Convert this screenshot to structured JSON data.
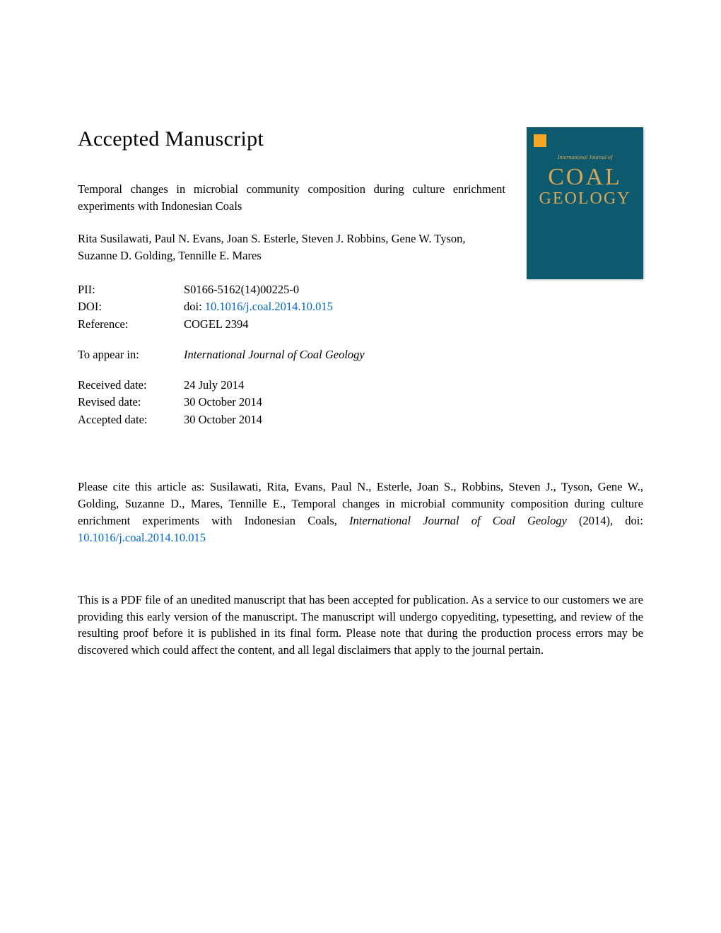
{
  "header": {
    "title": "Accepted Manuscript"
  },
  "article": {
    "title": "Temporal changes in microbial community composition during culture enrichment experiments with Indonesian Coals",
    "authors": "Rita Susilawati, Paul N. Evans, Joan S. Esterle, Steven J. Robbins, Gene W. Tyson, Suzanne D. Golding, Tennille E. Mares"
  },
  "meta": {
    "pii_label": "PII:",
    "pii_value": "S0166-5162(14)00225-0",
    "doi_label": "DOI:",
    "doi_prefix": "doi: ",
    "doi_link": "10.1016/j.coal.2014.10.015",
    "doi_link_color": "#0066cc",
    "reference_label": "Reference:",
    "reference_value": "COGEL 2394",
    "appear_label": "To appear in:",
    "journal": "International Journal of Coal Geology",
    "received_label": "Received date:",
    "received_value": "24 July 2014",
    "revised_label": "Revised date:",
    "revised_value": "30 October 2014",
    "accepted_label": "Accepted date:",
    "accepted_value": "30 October 2014"
  },
  "cover": {
    "background_color": "#0d5a6e",
    "accent_color": "#d9a85a",
    "logo_color": "#f5a623",
    "subtitle": "International Journal of",
    "title_line1": "COAL",
    "title_line2": "GEOLOGY"
  },
  "citation": {
    "prefix": "Please cite this article as: Susilawati, Rita, Evans, Paul N., Esterle, Joan S., Robbins, Steven J., Tyson, Gene W., Golding, Suzanne D., Mares, Tennille E., Temporal changes in microbial community composition during culture enrichment experiments with Indonesian Coals, ",
    "journal_italic": "International Journal of Coal Geology ",
    "year": "(2014),  doi: ",
    "doi_link": "10.1016/j.coal.2014.10.015"
  },
  "disclaimer": {
    "text": "This is a PDF file of an unedited manuscript that has been accepted for publication. As a service to our customers we are providing this early version of the manuscript. The manuscript will undergo copyediting, typesetting, and review of the resulting proof before it is published in its final form. Please note that during the production process errors may be discovered which could affect the content, and all legal disclaimers that apply to the journal pertain."
  },
  "typography": {
    "body_font": "Times New Roman",
    "title_fontsize": 30,
    "body_fontsize": 16.5,
    "text_color": "#000000",
    "link_color": "#0066cc",
    "background_color": "#ffffff"
  }
}
